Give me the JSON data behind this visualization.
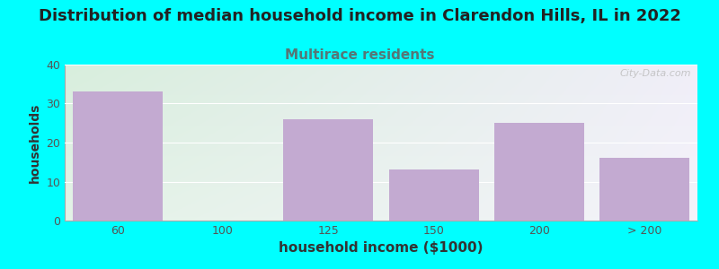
{
  "title": "Distribution of median household income in Clarendon Hills, IL in 2022",
  "subtitle": "Multirace residents",
  "xlabel": "household income ($1000)",
  "ylabel": "households",
  "categories": [
    "60",
    "100",
    "125",
    "150",
    "200",
    "> 200"
  ],
  "values": [
    33,
    0,
    26,
    13,
    25,
    16
  ],
  "bar_color": "#c3aad1",
  "background_color": "#00ffff",
  "plot_bg_left": "#d8eedd",
  "plot_bg_right": "#f0eef8",
  "plot_bg_top": "#f5f5fa",
  "ylim": [
    0,
    40
  ],
  "yticks": [
    0,
    10,
    20,
    30,
    40
  ],
  "title_fontsize": 13,
  "subtitle_fontsize": 11,
  "subtitle_color": "#557777",
  "xlabel_fontsize": 11,
  "ylabel_fontsize": 10,
  "bar_width": 0.85,
  "watermark": "City-Data.com"
}
